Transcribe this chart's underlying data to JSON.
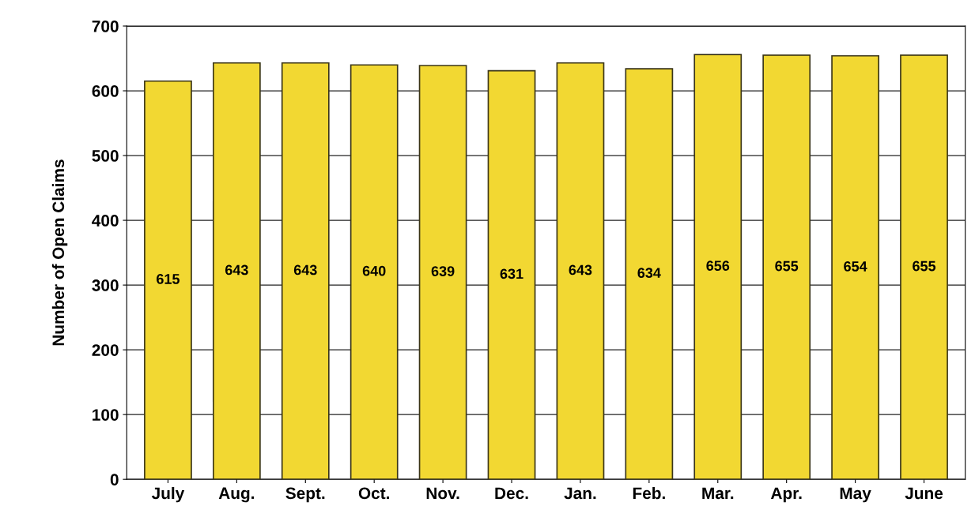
{
  "chart_data": {
    "type": "bar",
    "ylabel": "Number of Open Claims",
    "categories": [
      "July",
      "Aug.",
      "Sept.",
      "Oct.",
      "Nov.",
      "Dec.",
      "Jan.",
      "Feb.",
      "Mar.",
      "Apr.",
      "May",
      "June"
    ],
    "values": [
      615,
      643,
      643,
      640,
      639,
      631,
      643,
      634,
      656,
      655,
      654,
      655
    ],
    "color": "#f2d832",
    "ylim": [
      0,
      700
    ],
    "yticks": [
      0,
      100,
      200,
      300,
      400,
      500,
      600,
      700
    ],
    "grid": "y",
    "data_labels": true
  }
}
